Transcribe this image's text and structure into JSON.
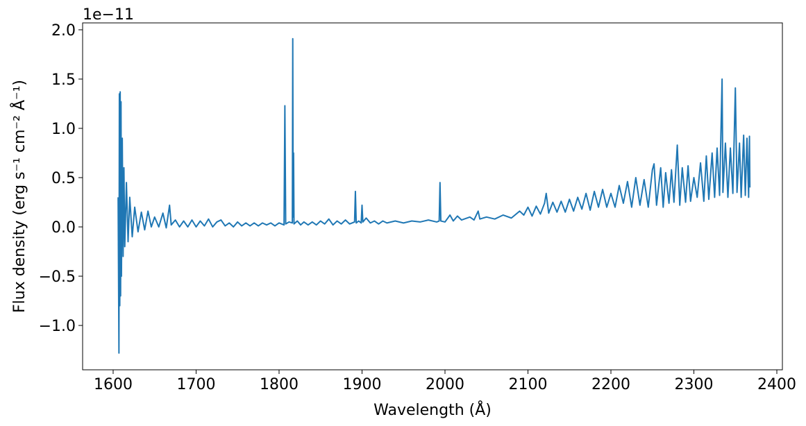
{
  "chart_data": {
    "type": "line",
    "xlabel": "Wavelength (Å)",
    "ylabel": "Flux density (erg s⁻¹ cm⁻² Å⁻¹)",
    "offset_label": "1e−11",
    "xlim": [
      1563.2,
      2406.7
    ],
    "ylim": [
      -1.45,
      2.07
    ],
    "xticks": [
      1600,
      1700,
      1800,
      1900,
      2000,
      2100,
      2200,
      2300,
      2400
    ],
    "yticks": [
      {
        "value": -1.0,
        "label": "−1.0"
      },
      {
        "value": -0.5,
        "label": "−0.5"
      },
      {
        "value": 0,
        "label": "0.0"
      },
      0.5,
      {
        "value": 1.0,
        "label": "1.0"
      },
      1.5,
      {
        "value": 2.0,
        "label": "2.0"
      }
    ],
    "grid": false,
    "series": [
      {
        "color": "#1f77b4",
        "x": [
          1606,
          1607,
          1607.5,
          1608,
          1608.5,
          1609,
          1609.5,
          1610,
          1611,
          1612,
          1613,
          1614,
          1616,
          1618,
          1620,
          1623,
          1626,
          1630,
          1634,
          1638,
          1642,
          1646,
          1650,
          1655,
          1660,
          1664,
          1668,
          1670,
          1675,
          1680,
          1685,
          1690,
          1695,
          1700,
          1705,
          1710,
          1715,
          1720,
          1725,
          1730,
          1735,
          1740,
          1745,
          1750,
          1755,
          1760,
          1765,
          1770,
          1775,
          1780,
          1785,
          1790,
          1795,
          1800,
          1806,
          1807,
          1808,
          1812,
          1816,
          1816.5,
          1817,
          1817.5,
          1818,
          1822,
          1826,
          1830,
          1835,
          1840,
          1845,
          1850,
          1855,
          1860,
          1865,
          1870,
          1875,
          1880,
          1885,
          1891,
          1892,
          1893,
          1896,
          1899,
          1900,
          1901,
          1905,
          1910,
          1915,
          1920,
          1925,
          1930,
          1940,
          1950,
          1960,
          1970,
          1980,
          1990,
          1993,
          1994,
          1995,
          2000,
          2006,
          2010,
          2015,
          2020,
          2030,
          2035,
          2040,
          2042,
          2050,
          2060,
          2070,
          2080,
          2090,
          2095,
          2100,
          2105,
          2110,
          2115,
          2120,
          2122,
          2125,
          2130,
          2135,
          2140,
          2145,
          2150,
          2155,
          2160,
          2165,
          2170,
          2175,
          2180,
          2185,
          2190,
          2195,
          2200,
          2205,
          2210,
          2215,
          2220,
          2225,
          2230,
          2235,
          2240,
          2245,
          2250,
          2252,
          2255,
          2260,
          2263,
          2266,
          2270,
          2273,
          2276,
          2280,
          2283,
          2286,
          2290,
          2293,
          2296,
          2300,
          2304,
          2308,
          2312,
          2315,
          2318,
          2322,
          2325,
          2328,
          2331,
          2334,
          2335,
          2338,
          2341,
          2344,
          2347,
          2350,
          2352,
          2355,
          2357,
          2360,
          2362,
          2364,
          2366,
          2367,
          2367.5
        ],
        "values": [
          0.3,
          -1.28,
          1.35,
          -0.8,
          1.37,
          -0.7,
          1.27,
          -0.5,
          0.9,
          -0.3,
          0.6,
          -0.2,
          0.45,
          -0.15,
          0.3,
          -0.1,
          0.2,
          -0.05,
          0.15,
          -0.03,
          0.16,
          0.0,
          0.1,
          0.0,
          0.14,
          -0.01,
          0.22,
          0.02,
          0.07,
          0.0,
          0.06,
          0.0,
          0.07,
          0.0,
          0.06,
          0.01,
          0.08,
          0.0,
          0.05,
          0.07,
          0.01,
          0.04,
          0.0,
          0.05,
          0.01,
          0.04,
          0.01,
          0.04,
          0.01,
          0.04,
          0.02,
          0.04,
          0.01,
          0.04,
          0.02,
          1.23,
          0.03,
          0.05,
          0.04,
          1.91,
          0.1,
          0.75,
          0.03,
          0.06,
          0.02,
          0.05,
          0.02,
          0.05,
          0.02,
          0.06,
          0.03,
          0.08,
          0.02,
          0.06,
          0.03,
          0.07,
          0.03,
          0.05,
          0.36,
          0.04,
          0.06,
          0.04,
          0.22,
          0.05,
          0.09,
          0.04,
          0.06,
          0.03,
          0.06,
          0.04,
          0.06,
          0.04,
          0.06,
          0.05,
          0.07,
          0.05,
          0.06,
          0.45,
          0.06,
          0.05,
          0.12,
          0.06,
          0.11,
          0.07,
          0.1,
          0.07,
          0.16,
          0.08,
          0.1,
          0.08,
          0.12,
          0.09,
          0.16,
          0.12,
          0.2,
          0.11,
          0.21,
          0.13,
          0.24,
          0.34,
          0.14,
          0.25,
          0.15,
          0.26,
          0.15,
          0.28,
          0.16,
          0.3,
          0.18,
          0.34,
          0.17,
          0.36,
          0.2,
          0.38,
          0.2,
          0.34,
          0.2,
          0.42,
          0.24,
          0.46,
          0.2,
          0.5,
          0.22,
          0.48,
          0.2,
          0.58,
          0.64,
          0.22,
          0.6,
          0.2,
          0.55,
          0.24,
          0.58,
          0.25,
          0.83,
          0.22,
          0.6,
          0.25,
          0.62,
          0.26,
          0.5,
          0.3,
          0.65,
          0.26,
          0.72,
          0.28,
          0.75,
          0.3,
          0.8,
          0.32,
          1.5,
          0.35,
          0.85,
          0.3,
          0.8,
          0.34,
          1.41,
          0.35,
          0.85,
          0.3,
          0.93,
          0.32,
          0.9,
          0.3,
          0.92,
          0.4
        ]
      }
    ]
  }
}
